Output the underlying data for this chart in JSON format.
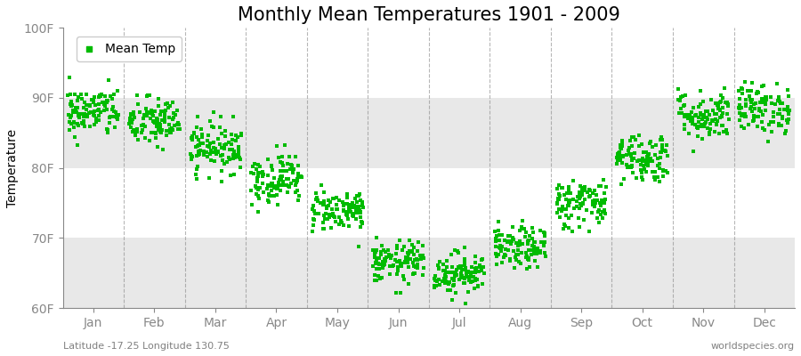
{
  "title": "Monthly Mean Temperatures 1901 - 2009",
  "ylabel": "Temperature",
  "ylim": [
    60,
    100
  ],
  "yticks": [
    60,
    70,
    80,
    90,
    100
  ],
  "ytick_labels": [
    "60F",
    "70F",
    "80F",
    "90F",
    "100F"
  ],
  "months": [
    "Jan",
    "Feb",
    "Mar",
    "Apr",
    "May",
    "Jun",
    "Jul",
    "Aug",
    "Sep",
    "Oct",
    "Nov",
    "Dec"
  ],
  "mean_temps_F": [
    88.0,
    86.5,
    83.0,
    78.5,
    74.0,
    66.5,
    65.0,
    68.5,
    75.0,
    81.5,
    87.5,
    88.5
  ],
  "std_F": [
    1.8,
    1.8,
    1.8,
    1.8,
    1.5,
    1.5,
    1.5,
    1.5,
    1.8,
    1.8,
    1.8,
    1.8
  ],
  "n_years": 109,
  "scatter_color": "#00BB00",
  "marker": "s",
  "marker_size": 3,
  "legend_label": "Mean Temp",
  "background_color": "#ffffff",
  "band_color_dark": "#e8e8e8",
  "band_ranges": [
    [
      80,
      90
    ],
    [
      60,
      70
    ]
  ],
  "grid_color": "#888888",
  "title_fontsize": 15,
  "axis_fontsize": 10,
  "tick_fontsize": 10,
  "subtitle_left": "Latitude -17.25 Longitude 130.75",
  "subtitle_right": "worldspecies.org"
}
